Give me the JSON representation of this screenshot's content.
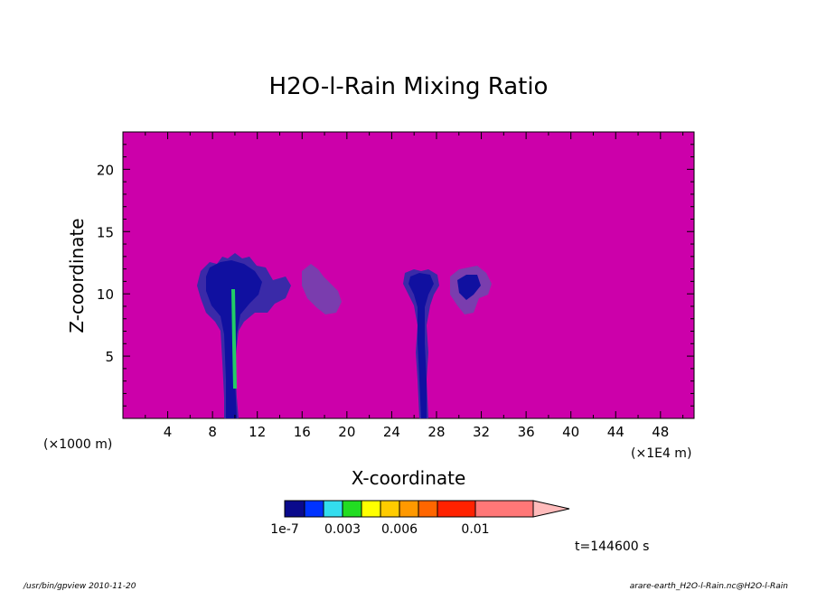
{
  "chart_data": {
    "type": "heatmap",
    "title": "H2O-l-Rain Mixing Ratio",
    "xlabel": "X-coordinate",
    "ylabel": "Z-coordinate",
    "x_unit_left": "(×1000 m)",
    "x_unit_right": "(×1E4 m)",
    "xlim": [
      0,
      51
    ],
    "ylim": [
      0,
      23
    ],
    "x_ticks": [
      4,
      8,
      12,
      16,
      20,
      24,
      28,
      32,
      36,
      40,
      44,
      48
    ],
    "y_ticks": [
      5,
      10,
      15,
      20
    ],
    "background_color": "#cc00aa",
    "colorbar": {
      "colors": [
        "#0a0a8c",
        "#0033ff",
        "#33ddee",
        "#22dd22",
        "#ffff00",
        "#ffcc00",
        "#ff9900",
        "#ff6600",
        "#ff2200",
        "#ff7777",
        "#ffbbbb"
      ],
      "labels": [
        {
          "text": "1e-7",
          "index": 0
        },
        {
          "text": "0.003",
          "index": 3
        },
        {
          "text": "0.006",
          "index": 6
        },
        {
          "text": "0.01",
          "index": 9
        }
      ]
    },
    "time_label": "t=144600 s",
    "features": [
      {
        "name": "cloud-1",
        "x_center": 9.8,
        "z_top": 13.5,
        "color": "#1a1aa8"
      },
      {
        "name": "cloud-2",
        "x_center": 18.0,
        "z_top": 12.0,
        "color": "#7a3dae"
      },
      {
        "name": "cloud-3",
        "x_center": 26.8,
        "z_top": 11.5,
        "color": "#1a1aa8"
      },
      {
        "name": "cloud-4",
        "x_center": 31.0,
        "z_top": 12.0,
        "color": "#7a3dae"
      }
    ]
  },
  "footer": {
    "left": "/usr/bin/gpview   2010-11-20",
    "right": "arare-earth_H2O-l-Rain.nc@H2O-l-Rain"
  }
}
